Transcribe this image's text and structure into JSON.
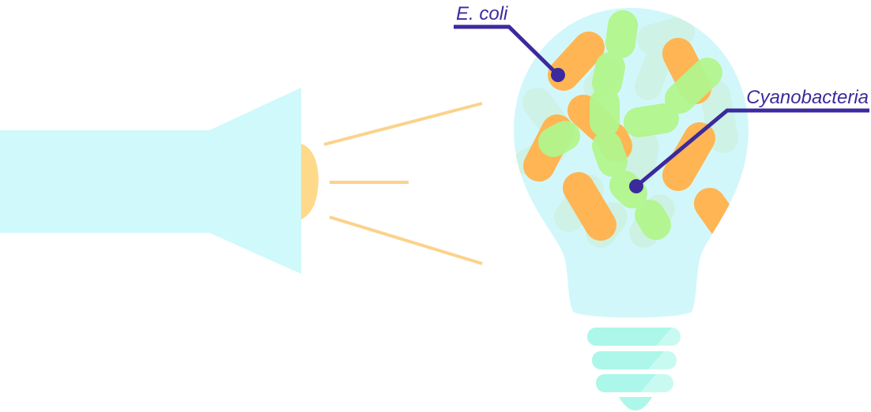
{
  "labels": {
    "ecoli": "E. coli",
    "cyanobacteria": "Cyanobacteria"
  },
  "colors": {
    "flashlight": "#cff9fb",
    "lens": "#ffd98a",
    "beam": "#fcd28b",
    "bulb": "#d2f7fb",
    "bulb_base": "#acf7ea",
    "ecoli": "#ffb553",
    "cyanobacteria": "#b2f68d",
    "label": "#3b2a9e"
  },
  "icons": {
    "flashlight": "flashlight-icon",
    "bulb": "light-bulb-icon"
  }
}
